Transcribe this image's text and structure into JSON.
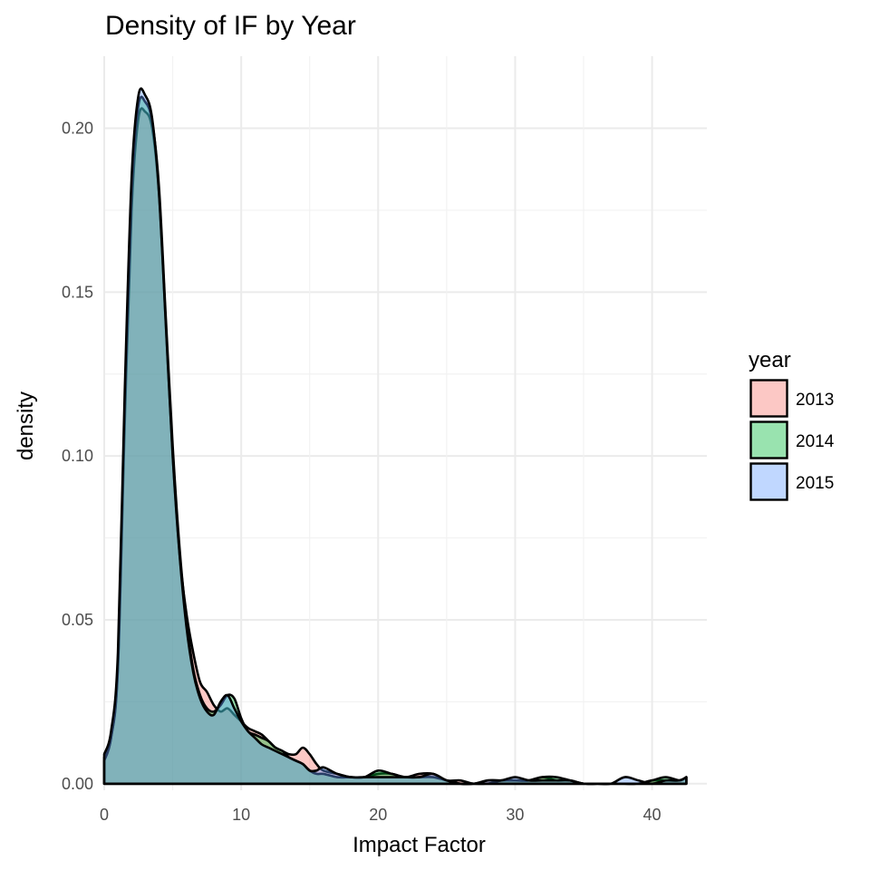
{
  "chart_data": {
    "type": "area",
    "title": "Density of IF by Year",
    "xlabel": "Impact Factor",
    "ylabel": "density",
    "xlim": [
      0,
      44
    ],
    "ylim": [
      -0.002,
      0.222
    ],
    "x_ticks": [
      0,
      10,
      20,
      30,
      40
    ],
    "x_tick_labels": [
      "0",
      "10",
      "20",
      "30",
      "40"
    ],
    "y_ticks": [
      0,
      0.05,
      0.1,
      0.15,
      0.2
    ],
    "y_tick_labels": [
      "0.00",
      "0.05",
      "0.10",
      "0.15",
      "0.20"
    ],
    "grid": true,
    "legend": {
      "title": "year",
      "position": "right"
    },
    "fill_opacity": 0.4,
    "series": [
      {
        "name": "2013",
        "color": "#F8766D",
        "x": [
          0,
          0.5,
          1,
          1.5,
          2,
          2.5,
          3,
          3.5,
          4,
          4.5,
          5,
          5.5,
          6,
          6.5,
          7,
          7.5,
          8,
          8.5,
          9,
          9.5,
          10,
          10.5,
          11,
          11.5,
          12,
          12.5,
          13,
          13.5,
          14,
          14.5,
          15,
          15.5,
          16,
          17,
          18,
          19,
          20,
          21,
          22,
          23,
          24,
          25,
          26,
          27,
          28,
          29,
          30,
          31,
          32,
          33,
          34,
          35,
          36,
          37,
          38,
          39,
          40,
          41,
          42,
          42.5
        ],
        "y": [
          0.008,
          0.014,
          0.035,
          0.11,
          0.175,
          0.203,
          0.205,
          0.2,
          0.18,
          0.14,
          0.1,
          0.07,
          0.052,
          0.04,
          0.031,
          0.028,
          0.024,
          0.022,
          0.023,
          0.021,
          0.019,
          0.017,
          0.016,
          0.015,
          0.013,
          0.011,
          0.01,
          0.009,
          0.009,
          0.011,
          0.009,
          0.006,
          0.004,
          0.003,
          0.002,
          0.002,
          0.003,
          0.003,
          0.002,
          0.003,
          0.003,
          0.001,
          0.001,
          0,
          0.001,
          0.001,
          0.001,
          0.001,
          0.002,
          0.001,
          0.001,
          0,
          0,
          0,
          0,
          0,
          0.001,
          0.001,
          0.001,
          0.002
        ]
      },
      {
        "name": "2014",
        "color": "#00BA38",
        "x": [
          0,
          0.5,
          1,
          1.5,
          2,
          2.5,
          3,
          3.5,
          4,
          4.5,
          5,
          5.5,
          6,
          6.5,
          7,
          7.5,
          8,
          8.5,
          9,
          9.5,
          10,
          10.5,
          11,
          11.5,
          12,
          12.5,
          13,
          13.5,
          14,
          14.5,
          15,
          15.5,
          16,
          17,
          18,
          19,
          20,
          21,
          22,
          23,
          24,
          25,
          26,
          27,
          28,
          29,
          30,
          31,
          32,
          33,
          34,
          35,
          36,
          37,
          38,
          39,
          40,
          41,
          42,
          42.5
        ],
        "y": [
          0.007,
          0.014,
          0.036,
          0.115,
          0.18,
          0.207,
          0.208,
          0.202,
          0.182,
          0.142,
          0.103,
          0.072,
          0.05,
          0.035,
          0.027,
          0.023,
          0.022,
          0.024,
          0.027,
          0.026,
          0.02,
          0.016,
          0.015,
          0.014,
          0.013,
          0.011,
          0.01,
          0.008,
          0.007,
          0.006,
          0.004,
          0.003,
          0.003,
          0.002,
          0.002,
          0.002,
          0.004,
          0.003,
          0.002,
          0.002,
          0.002,
          0.001,
          0,
          0,
          0,
          0.001,
          0.001,
          0.001,
          0.002,
          0.002,
          0.001,
          0,
          0,
          0,
          0,
          0,
          0.001,
          0.002,
          0.001,
          0.002
        ]
      },
      {
        "name": "2015",
        "color": "#619CFF",
        "x": [
          0,
          0.5,
          1,
          1.5,
          2,
          2.5,
          3,
          3.5,
          4,
          4.5,
          5,
          5.5,
          6,
          6.5,
          7,
          7.5,
          8,
          8.5,
          9,
          9.5,
          10,
          10.5,
          11,
          11.5,
          12,
          12.5,
          13,
          13.5,
          14,
          14.5,
          15,
          15.5,
          16,
          17,
          18,
          19,
          20,
          21,
          22,
          23,
          24,
          25,
          26,
          27,
          28,
          29,
          30,
          31,
          32,
          33,
          34,
          35,
          36,
          37,
          38,
          39,
          40,
          41,
          42,
          42.5
        ],
        "y": [
          0.009,
          0.016,
          0.04,
          0.12,
          0.185,
          0.21,
          0.21,
          0.203,
          0.18,
          0.14,
          0.1,
          0.07,
          0.048,
          0.034,
          0.026,
          0.022,
          0.021,
          0.025,
          0.027,
          0.023,
          0.019,
          0.016,
          0.014,
          0.012,
          0.011,
          0.01,
          0.009,
          0.008,
          0.007,
          0.006,
          0.004,
          0.004,
          0.005,
          0.003,
          0.002,
          0.002,
          0.002,
          0.002,
          0.002,
          0.002,
          0.003,
          0.001,
          0,
          0,
          0.001,
          0.001,
          0.002,
          0.001,
          0.001,
          0.001,
          0.001,
          0,
          0,
          0,
          0.002,
          0.001,
          0,
          0.001,
          0.001,
          0.002
        ]
      }
    ]
  }
}
